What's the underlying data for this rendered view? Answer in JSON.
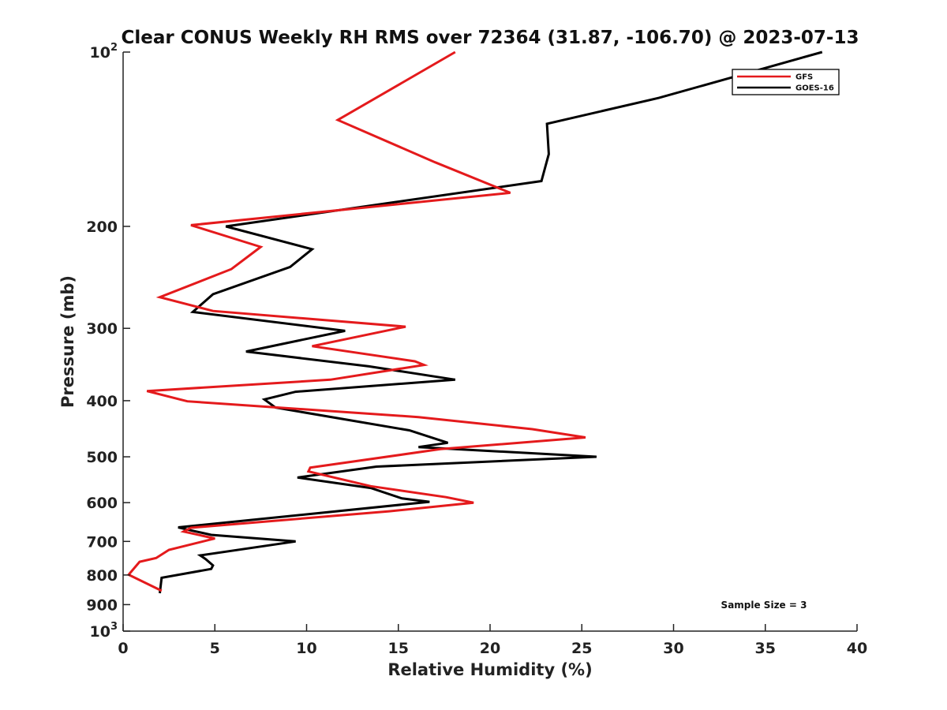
{
  "chart_data": {
    "type": "line",
    "title": "Clear CONUS Weekly RH RMS over 72364 (31.87, -106.70) @ 2023-07-13",
    "xlabel": "Relative Humidity (%)",
    "ylabel": "Pressure (mb)",
    "xlim": [
      0,
      40
    ],
    "ylim": [
      100,
      1000
    ],
    "y_scale": "log",
    "y_reversed": true,
    "x_ticks": [
      "0",
      "5",
      "10",
      "15",
      "20",
      "25",
      "30",
      "35",
      "40"
    ],
    "y_ticks": [
      {
        "value": 100,
        "base": "10",
        "exp": "2"
      },
      {
        "value": 200,
        "label": "200"
      },
      {
        "value": 300,
        "label": "300"
      },
      {
        "value": 400,
        "label": "400"
      },
      {
        "value": 500,
        "label": "500"
      },
      {
        "value": 600,
        "label": "600"
      },
      {
        "value": 700,
        "label": "700"
      },
      {
        "value": 800,
        "label": "800"
      },
      {
        "value": 900,
        "label": "900"
      },
      {
        "value": 1000,
        "base": "10",
        "exp": "3"
      }
    ],
    "legend_position": "top-right",
    "grid": false,
    "annotation": "Sample Size = 3",
    "series": [
      {
        "name": "GFS",
        "color": "#e41a1c",
        "x": [
          18.1,
          11.7,
          17.0,
          21.1,
          3.7,
          7.5,
          5.9,
          2.0,
          4.9,
          15.4,
          10.3,
          15.9,
          16.4,
          11.3,
          1.3,
          3.5,
          16.1,
          22.3,
          25.2,
          17.3,
          10.2,
          10.1,
          13.5,
          17.6,
          19.1,
          14.5,
          3.7,
          3.3,
          5.0,
          2.5,
          1.8,
          0.9,
          0.3,
          2.1
        ],
        "y": [
          100,
          131,
          155,
          175,
          199,
          217,
          237,
          265,
          280,
          298,
          322,
          342,
          347,
          368,
          385,
          401,
          427,
          448,
          463,
          485,
          522,
          530,
          562,
          587,
          600,
          621,
          663,
          673,
          692,
          724,
          748,
          759,
          799,
          852
        ]
      },
      {
        "name": "GOES-16",
        "color": "#000000",
        "x": [
          38.1,
          29.2,
          23.1,
          23.2,
          22.8,
          5.6,
          10.3,
          9.1,
          4.9,
          3.8,
          12.1,
          6.7,
          13.4,
          18.1,
          9.4,
          7.7,
          8.3,
          15.6,
          17.7,
          16.1,
          25.8,
          13.8,
          9.5,
          13.5,
          15.2,
          16.7,
          3.0,
          3.7,
          4.8,
          9.4,
          4.2,
          4.5,
          4.9,
          4.8,
          2.1,
          2.0
        ],
        "y": [
          100,
          120,
          133,
          150,
          167,
          200,
          219,
          235,
          262,
          281,
          303,
          329,
          349,
          368,
          386,
          398,
          411,
          450,
          473,
          481,
          500,
          520,
          543,
          566,
          590,
          598,
          662,
          670,
          682,
          700,
          740,
          751,
          770,
          781,
          809,
          860
        ]
      }
    ]
  }
}
